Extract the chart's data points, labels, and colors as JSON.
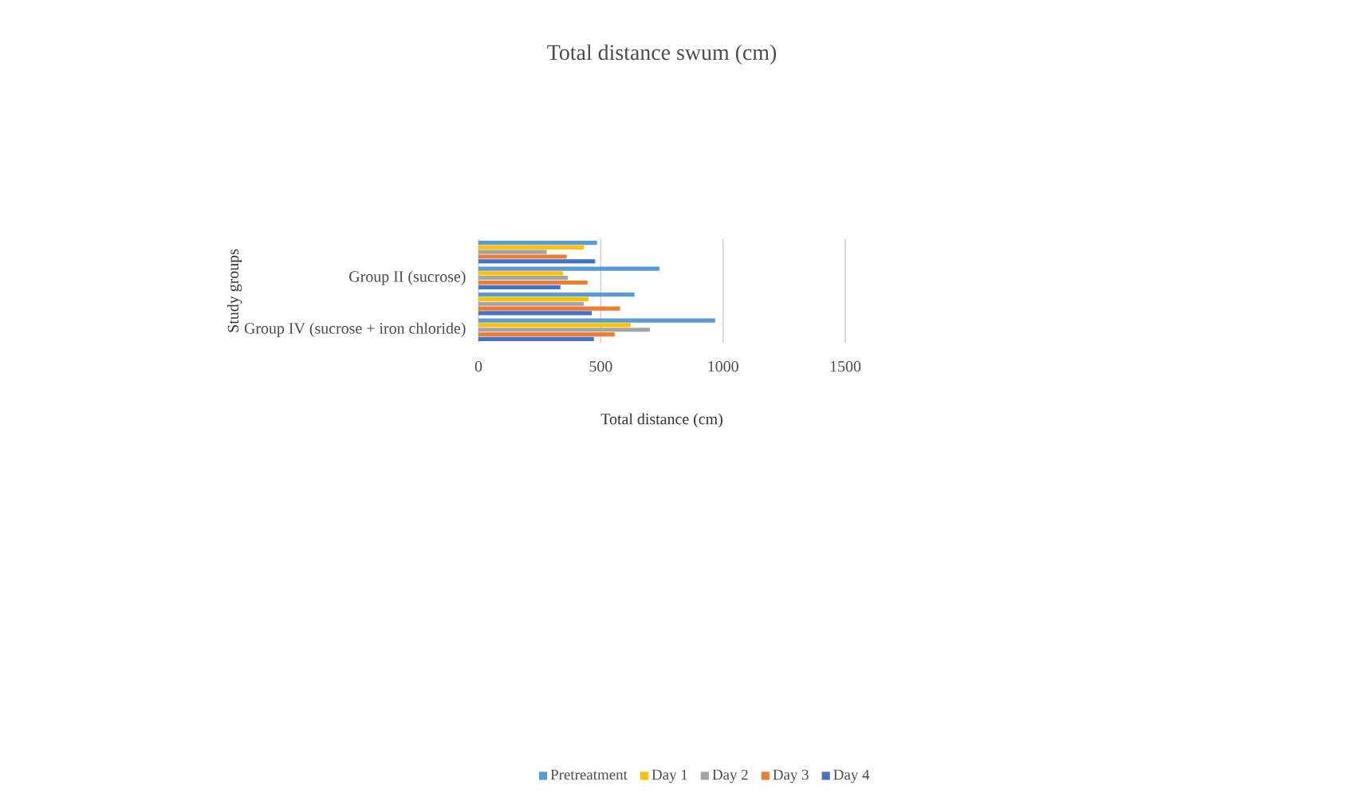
{
  "chart_data": {
    "type": "bar",
    "orientation": "horizontal",
    "title": "Total distance swum (cm)",
    "xlabel": "Total distance (cm)",
    "ylabel": "Study groups",
    "categories": [
      null,
      "Group II (sucrose)",
      null,
      "Group IV (sucrose + iron chloride)"
    ],
    "series": [
      {
        "name": "Pretreatment",
        "color": "#5b9bd5",
        "values": [
          485,
          740,
          638,
          968
        ]
      },
      {
        "name": "Day 1",
        "color": "#ffc000",
        "values": [
          431,
          346,
          450,
          622
        ]
      },
      {
        "name": "Day 2",
        "color": "#a5a5a5",
        "values": [
          279,
          366,
          431,
          701
        ]
      },
      {
        "name": "Day 3",
        "color": "#ed7d31",
        "values": [
          361,
          446,
          579,
          557
        ]
      },
      {
        "name": "Day 4",
        "color": "#4472c4",
        "values": [
          477,
          335,
          463,
          472
        ]
      }
    ],
    "xlim": [
      0,
      1500
    ],
    "xticks": [
      0,
      500,
      1000,
      1500
    ],
    "grid": "x",
    "legend": "bottom"
  }
}
